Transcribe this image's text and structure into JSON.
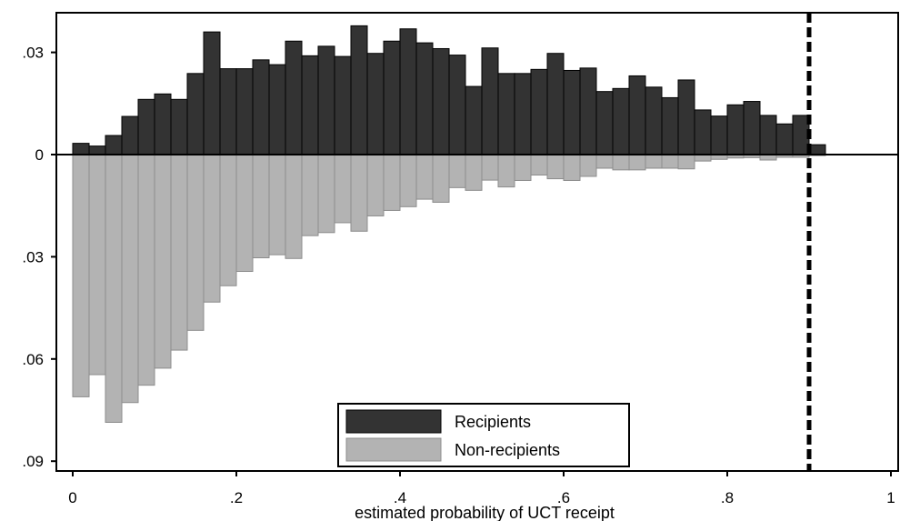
{
  "chart_data": {
    "type": "bar",
    "title": "",
    "xlabel": "estimated probability of UCT receipt",
    "ylabel": "",
    "xlim": [
      0,
      1
    ],
    "ylim": [
      -0.09,
      0.034
    ],
    "x_ticks": [
      {
        "value": 0,
        "label": "0"
      },
      {
        "value": 0.2,
        "label": ".2"
      },
      {
        "value": 0.4,
        "label": ".4"
      },
      {
        "value": 0.6,
        "label": ".6"
      },
      {
        "value": 0.8,
        "label": ".8"
      },
      {
        "value": 1,
        "label": "1"
      }
    ],
    "y_ticks": [
      {
        "value": 0.03,
        "label": ".03"
      },
      {
        "value": 0,
        "label": "0"
      },
      {
        "value": -0.03,
        "label": ".03"
      },
      {
        "value": -0.06,
        "label": ".06"
      },
      {
        "value": -0.09,
        "label": ".09"
      }
    ],
    "grid": false,
    "legend_position": "bottom-center",
    "reference_line_x": 0.9,
    "bin_width": 0.02,
    "x": [
      0.01,
      0.03,
      0.05,
      0.07,
      0.09,
      0.11,
      0.13,
      0.15,
      0.17,
      0.19,
      0.21,
      0.23,
      0.25,
      0.27,
      0.29,
      0.31,
      0.33,
      0.35,
      0.37,
      0.39,
      0.41,
      0.43,
      0.45,
      0.47,
      0.49,
      0.51,
      0.53,
      0.55,
      0.57,
      0.59,
      0.61,
      0.63,
      0.65,
      0.67,
      0.69,
      0.71,
      0.73,
      0.75,
      0.77,
      0.79,
      0.81,
      0.83,
      0.85,
      0.87,
      0.89,
      0.91
    ],
    "series": [
      {
        "name": "Recipients",
        "color": "#333333",
        "values": [
          0.0033,
          0.0025,
          0.0056,
          0.0112,
          0.0162,
          0.0178,
          0.0162,
          0.0238,
          0.036,
          0.0252,
          0.0252,
          0.0278,
          0.0264,
          0.0333,
          0.029,
          0.0318,
          0.0288,
          0.0378,
          0.0297,
          0.0333,
          0.0369,
          0.0328,
          0.0311,
          0.0292,
          0.02,
          0.0313,
          0.0238,
          0.0238,
          0.025,
          0.0297,
          0.0247,
          0.0254,
          0.0185,
          0.0194,
          0.0231,
          0.0198,
          0.0167,
          0.0219,
          0.0131,
          0.0113,
          0.0146,
          0.0156,
          0.0115,
          0.009,
          0.0115,
          0.0029
        ]
      },
      {
        "name": "Non-recipients",
        "color": "#b3b3b3",
        "values": [
          -0.0711,
          -0.0646,
          -0.0786,
          -0.0728,
          -0.0677,
          -0.0627,
          -0.0574,
          -0.0516,
          -0.0433,
          -0.0385,
          -0.0343,
          -0.0303,
          -0.0294,
          -0.0305,
          -0.0238,
          -0.0229,
          -0.02,
          -0.0225,
          -0.018,
          -0.0164,
          -0.0153,
          -0.0131,
          -0.014,
          -0.0097,
          -0.0105,
          -0.0075,
          -0.0095,
          -0.0076,
          -0.006,
          -0.0071,
          -0.0076,
          -0.0064,
          -0.004,
          -0.0045,
          -0.0045,
          -0.004,
          -0.004,
          -0.0042,
          -0.0019,
          -0.0014,
          -0.001,
          -0.0009,
          -0.0016,
          -0.0008,
          -0.0008,
          -0.0003
        ]
      }
    ]
  }
}
